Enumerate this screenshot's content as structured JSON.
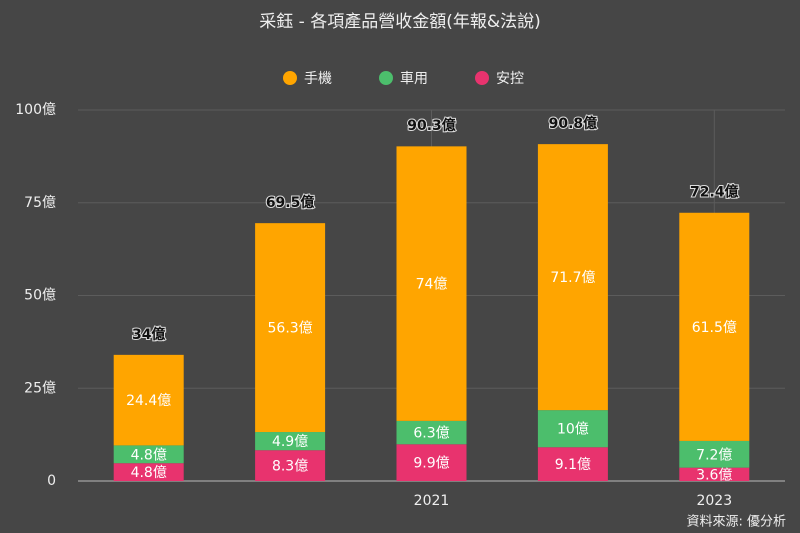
{
  "chart_data": {
    "type": "bar",
    "stacked": true,
    "title": "采鈺 - 各項產品營收金額(年報&法說)",
    "categories": [
      null,
      null,
      "2021",
      null,
      "2023"
    ],
    "series": [
      {
        "name": "安控",
        "color": "#e8336e",
        "values": [
          4.8,
          8.3,
          9.9,
          9.1,
          3.6
        ],
        "value_labels": [
          "4.8億",
          "8.3億",
          "9.9億",
          "9.1億",
          "3.6億"
        ]
      },
      {
        "name": "車用",
        "color": "#4cbe6c",
        "values": [
          4.8,
          4.9,
          6.3,
          10,
          7.2
        ],
        "value_labels": [
          "4.8億",
          "4.9億",
          "6.3億",
          "10億",
          "7.2億"
        ]
      },
      {
        "name": "手機",
        "color": "#ffa500",
        "values": [
          24.4,
          56.3,
          74,
          71.7,
          61.5
        ],
        "value_labels": [
          "24.4億",
          "56.3億",
          "74億",
          "71.7億",
          "61.5億"
        ]
      }
    ],
    "totals": {
      "values": [
        34,
        69.5,
        90.3,
        90.8,
        72.4
      ],
      "value_labels": [
        "34億",
        "69.5億",
        "90.3億",
        "90.8億",
        "72.4億"
      ]
    },
    "ylim": [
      0,
      100
    ],
    "yticks": [
      0,
      {
        "value": 25,
        "label": "25億"
      },
      {
        "value": 50,
        "label": "50億"
      },
      {
        "value": 75,
        "label": "75億"
      },
      {
        "value": 100,
        "label": "100億"
      }
    ],
    "grid": true,
    "legend": "top",
    "source": "資料來源: 優分析"
  }
}
